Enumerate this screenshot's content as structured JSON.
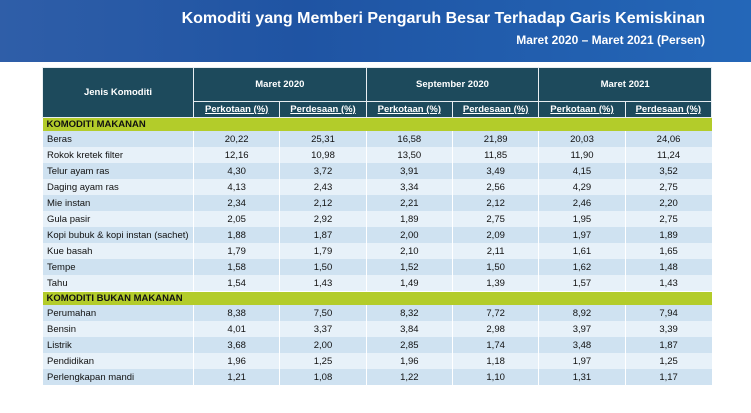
{
  "header": {
    "title": "Komoditi yang Memberi Pengaruh Besar Terhadap Garis Kemiskinan",
    "subtitle": "Maret 2020 – Maret 2021 (Persen)"
  },
  "table": {
    "column_header": "Jenis Komoditi",
    "periods": [
      "Maret 2020",
      "September 2020",
      "Maret 2021"
    ],
    "subheaders": [
      "Perkotaan (%)",
      "Perdesaan (%)",
      "Perkotaan (%)",
      "Perdesaan (%)",
      "Perkotaan (%)",
      "Perdesaan (%)"
    ],
    "sections": [
      {
        "name": "KOMODITI MAKANAN",
        "rows": [
          [
            "Beras",
            "20,22",
            "25,31",
            "16,58",
            "21,89",
            "20,03",
            "24,06"
          ],
          [
            "Rokok kretek filter",
            "12,16",
            "10,98",
            "13,50",
            "11,85",
            "11,90",
            "11,24"
          ],
          [
            "Telur ayam ras",
            "4,30",
            "3,72",
            "3,91",
            "3,49",
            "4,15",
            "3,52"
          ],
          [
            "Daging ayam ras",
            "4,13",
            "2,43",
            "3,34",
            "2,56",
            "4,29",
            "2,75"
          ],
          [
            "Mie instan",
            "2,34",
            "2,12",
            "2,21",
            "2,12",
            "2,46",
            "2,20"
          ],
          [
            "Gula pasir",
            "2,05",
            "2,92",
            "1,89",
            "2,75",
            "1,95",
            "2,75"
          ],
          [
            "Kopi bubuk & kopi instan (sachet)",
            "1,88",
            "1,87",
            "2,00",
            "2,09",
            "1,97",
            "1,89"
          ],
          [
            "Kue basah",
            "1,79",
            "1,79",
            "2,10",
            "2,11",
            "1,61",
            "1,65"
          ],
          [
            "Tempe",
            "1,58",
            "1,50",
            "1,52",
            "1,50",
            "1,62",
            "1,48"
          ],
          [
            "Tahu",
            "1,54",
            "1,43",
            "1,49",
            "1,39",
            "1,57",
            "1,43"
          ]
        ]
      },
      {
        "name": "KOMODITI BUKAN MAKANAN",
        "rows": [
          [
            "Perumahan",
            "8,38",
            "7,50",
            "8,32",
            "7,72",
            "8,92",
            "7,94"
          ],
          [
            "Bensin",
            "4,01",
            "3,37",
            "3,84",
            "2,98",
            "3,97",
            "3,39"
          ],
          [
            "Listrik",
            "3,68",
            "2,00",
            "2,85",
            "1,74",
            "3,48",
            "1,87"
          ],
          [
            "Pendidikan",
            "1,96",
            "1,25",
            "1,96",
            "1,18",
            "1,97",
            "1,25"
          ],
          [
            "Perlengkapan mandi",
            "1,21",
            "1,08",
            "1,22",
            "1,10",
            "1,31",
            "1,17"
          ]
        ]
      }
    ]
  }
}
